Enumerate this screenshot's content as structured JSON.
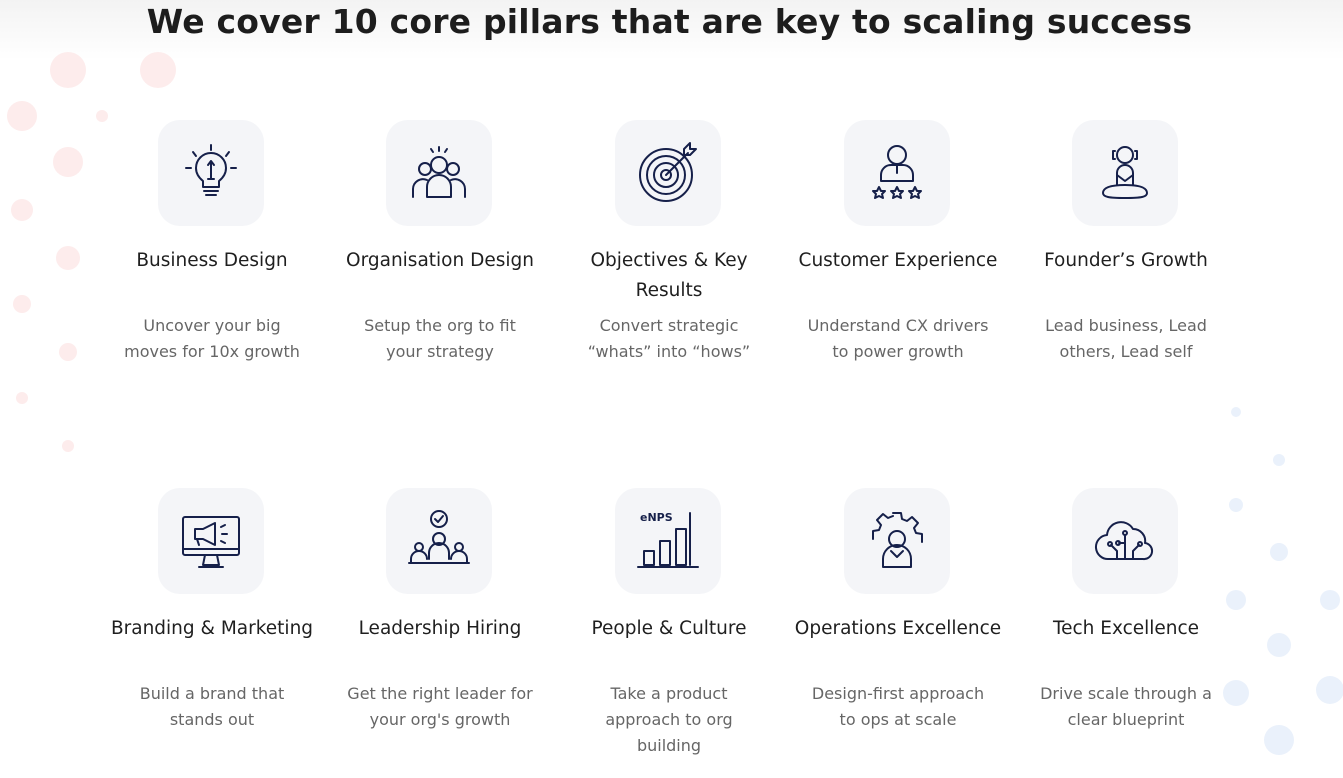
{
  "heading": "We cover 10 core pillars that are key to scaling success",
  "pillars": [
    {
      "title": "Business Design",
      "desc": "Uncover your big moves for 10x growth",
      "icon": "lightbulb-icon"
    },
    {
      "title": "Organisation Design",
      "desc": "Setup the org to fit your strategy",
      "icon": "team-icon"
    },
    {
      "title": "Objectives & Key Results",
      "desc": "Convert strategic “whats” into “hows”",
      "icon": "target-icon"
    },
    {
      "title": "Customer Experience",
      "desc": "Understand CX drivers to power growth",
      "icon": "customer-rating-icon"
    },
    {
      "title": "Founder’s Growth",
      "desc": "Lead business, Lead others, Lead self",
      "icon": "meditation-icon"
    },
    {
      "title": "Branding & Marketing",
      "desc": "Build a brand that stands out",
      "icon": "megaphone-monitor-icon"
    },
    {
      "title": "Leadership Hiring",
      "desc": "Get the right leader for your org's growth",
      "icon": "interview-icon"
    },
    {
      "title": "People & Culture",
      "desc": "Take a product approach to org building",
      "icon": "enps-chart-icon",
      "icon_text": "eNPS"
    },
    {
      "title": "Operations Excellence",
      "desc": "Design-first approach to ops at scale",
      "icon": "gear-person-icon"
    },
    {
      "title": "Tech Excellence",
      "desc": "Drive scale through a clear blueprint",
      "icon": "cloud-circuit-icon"
    }
  ],
  "colors": {
    "icon_stroke": "#16204a",
    "icon_bg": "#f4f5f8",
    "dots_left": "#fde8e8",
    "dots_right": "#e6effb"
  }
}
